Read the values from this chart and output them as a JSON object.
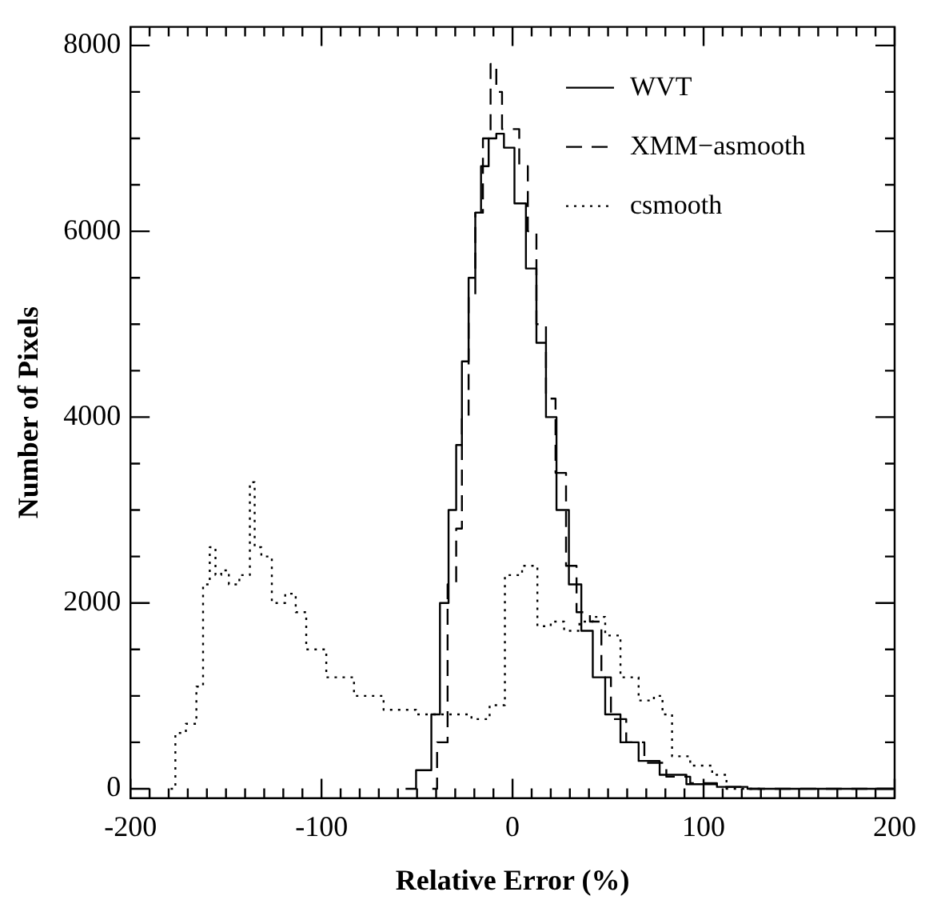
{
  "chart_data": {
    "type": "step",
    "xlabel": "Relative Error (%)",
    "ylabel": "Number of Pixels",
    "xlim": [
      -200,
      200
    ],
    "ylim": [
      -100,
      8200
    ],
    "xticks": [
      -200,
      -100,
      0,
      100,
      200
    ],
    "yticks": [
      0,
      2000,
      4000,
      6000,
      8000
    ],
    "grid": false,
    "legend": "top right",
    "series": [
      {
        "name": "WVT",
        "color": "#000000",
        "line_style": "solid",
        "x": [
          -56,
          -45,
          -40,
          -36,
          -31,
          -28,
          -25,
          -21,
          -18,
          -15,
          -10,
          -7,
          -2,
          4,
          10,
          15,
          20,
          26,
          33,
          39,
          45,
          52,
          61,
          71,
          83,
          99,
          115,
          131,
          200
        ],
        "values": [
          0,
          200,
          800,
          2000,
          3000,
          3700,
          4600,
          5500,
          6200,
          6700,
          7000,
          7050,
          6900,
          6300,
          5600,
          4800,
          4000,
          3000,
          2200,
          1700,
          1200,
          800,
          500,
          300,
          150,
          50,
          20,
          0,
          0
        ]
      },
      {
        "name": "XMM−asmooth",
        "color": "#000000",
        "line_style": "dashed",
        "x": [
          -42,
          -37,
          -31,
          -28,
          -25,
          -21,
          -18,
          -13,
          -10,
          -7,
          -4,
          1,
          6,
          10,
          15,
          20,
          25,
          31,
          36,
          45,
          48,
          55,
          64,
          74,
          87,
          99,
          115,
          131,
          200
        ],
        "values": [
          0,
          500,
          2200,
          2800,
          4000,
          5300,
          6200,
          7000,
          7800,
          7500,
          7100,
          7100,
          6700,
          6000,
          5000,
          4200,
          3400,
          2400,
          1900,
          1800,
          1200,
          750,
          500,
          280,
          130,
          60,
          20,
          0,
          0
        ]
      },
      {
        "name": "csmooth",
        "color": "#000000",
        "line_style": "dotted",
        "x": [
          -179,
          -174,
          -168,
          -163,
          -161,
          -156,
          -155,
          -150,
          -147,
          -139,
          -136,
          -134,
          -129,
          -123,
          -115,
          -112,
          -104,
          -91,
          -75,
          -60,
          -41,
          -28,
          -15,
          -9,
          1,
          9,
          17,
          23,
          31,
          39,
          45,
          52,
          61,
          71,
          77,
          80,
          87,
          99,
          110,
          114,
          131
        ],
        "values": [
          0,
          600,
          700,
          1100,
          2200,
          2600,
          2300,
          2350,
          2200,
          2300,
          3300,
          2600,
          2500,
          2000,
          2100,
          1900,
          1500,
          1200,
          1000,
          850,
          800,
          800,
          750,
          900,
          2300,
          2400,
          1750,
          1800,
          1700,
          1800,
          1850,
          1650,
          1200,
          950,
          1000,
          800,
          350,
          250,
          150,
          0,
          0
        ]
      }
    ]
  }
}
